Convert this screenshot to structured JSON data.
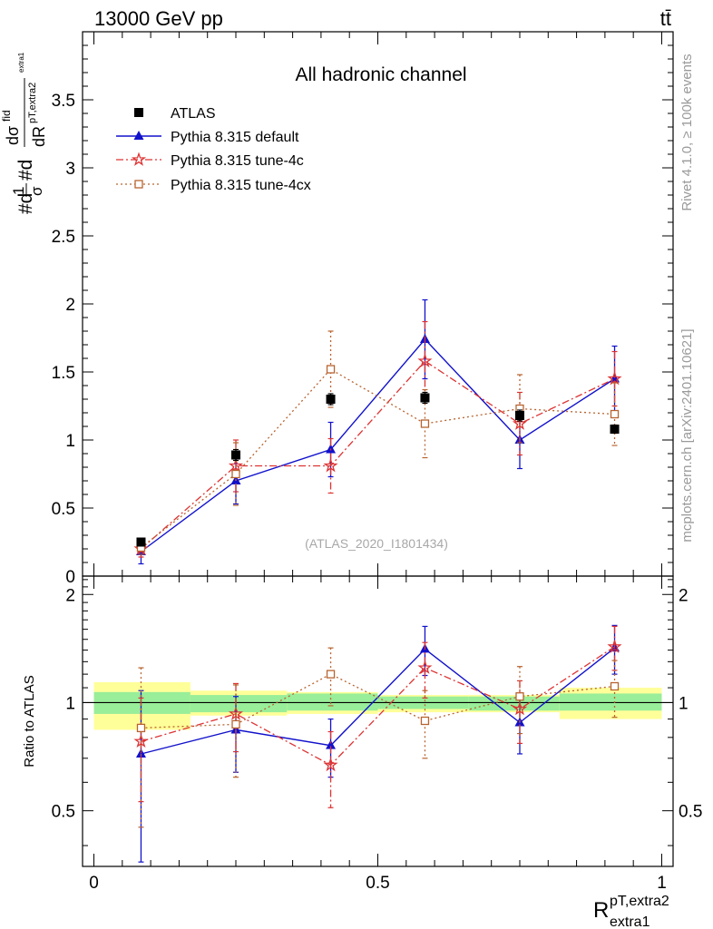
{
  "header": {
    "left": "13000 GeV pp",
    "right": "tt̄"
  },
  "side_labels": {
    "rivet": "Rivet 4.1.0, ≥ 100k events",
    "mcplots": "mcplots.cern.ch [arXiv:2401.10621]"
  },
  "chart_data": [
    {
      "type": "scatter",
      "panel": "main",
      "title": "All hadronic channel",
      "watermark": "(ATLAS_2020_I1801434)",
      "ylabel": "#d 1/σ #d dσ^fid / dR^{pT,extra2}_{extra1}",
      "ylabel_parts": {
        "prefix": "#d",
        "one": "1",
        "sigma": "σ",
        "mid": "#d",
        "num_d": "dσ",
        "num_sup": "fid",
        "den": "dR",
        "den_sub": "pT,extra2",
        "den_subsub": "extra1"
      },
      "xlim": [
        -0.02,
        1.02
      ],
      "ylim": [
        0,
        4.0
      ],
      "yticks": [
        0,
        0.5,
        1,
        1.5,
        2,
        2.5,
        3,
        3.5
      ],
      "ytick_labels": [
        "0",
        "0.5",
        "1",
        "1.5",
        "2",
        "2.5",
        "3",
        "3.5"
      ],
      "legend_location": "top-left",
      "series": [
        {
          "name": "ATLAS",
          "color": "#000000",
          "marker": "square",
          "x": [
            0.083,
            0.25,
            0.417,
            0.583,
            0.75,
            0.917
          ],
          "y": [
            0.25,
            0.89,
            1.3,
            1.31,
            1.18,
            1.08
          ],
          "yerr": [
            0.02,
            0.04,
            0.04,
            0.04,
            0.04,
            0.03
          ]
        },
        {
          "name": "Pythia 8.315 default",
          "color": "#1111cc",
          "marker": "triangle",
          "x": [
            0.083,
            0.25,
            0.417,
            0.583,
            0.75,
            0.917
          ],
          "y": [
            0.18,
            0.7,
            0.93,
            1.74,
            1.0,
            1.45
          ],
          "yerr": [
            0.09,
            0.17,
            0.2,
            0.29,
            0.21,
            0.24
          ]
        },
        {
          "name": "Pythia 8.315 tune-4c",
          "color": "#dd3333",
          "marker": "star",
          "x": [
            0.083,
            0.25,
            0.417,
            0.583,
            0.75,
            0.917
          ],
          "y": [
            0.2,
            0.81,
            0.81,
            1.58,
            1.12,
            1.45
          ],
          "yerr": [
            0.06,
            0.19,
            0.2,
            0.29,
            0.23,
            0.2
          ]
        },
        {
          "name": "Pythia 8.315 tune-4cx",
          "color": "#b8632f",
          "marker": "open-square",
          "x": [
            0.083,
            0.25,
            0.417,
            0.583,
            0.75,
            0.917
          ],
          "y": [
            0.21,
            0.75,
            1.52,
            1.12,
            1.23,
            1.19
          ],
          "yerr": [
            0.05,
            0.23,
            0.28,
            0.25,
            0.25,
            0.23
          ]
        }
      ]
    },
    {
      "type": "scatter",
      "panel": "ratio",
      "ylabel": "Ratio to ATLAS",
      "xlabel": "R^{pT,extra2}_{extra1}",
      "xlabel_main": "R",
      "xlabel_sup": "pT,extra2",
      "xlabel_sub": "extra1",
      "xlim": [
        -0.02,
        1.02
      ],
      "ylim": [
        0.35,
        2.25
      ],
      "xticks": [
        0,
        0.5,
        1
      ],
      "xtick_labels": [
        "0",
        "0.5",
        "1"
      ],
      "yticks": [
        0.5,
        1,
        2
      ],
      "ytick_labels": [
        "0.5",
        "1",
        "2"
      ],
      "reference_line": 1,
      "bins": [
        [
          0.0,
          0.17
        ],
        [
          0.17,
          0.34
        ],
        [
          0.34,
          0.5
        ],
        [
          0.5,
          0.66
        ],
        [
          0.66,
          0.82
        ],
        [
          0.82,
          1.0
        ]
      ],
      "band_inner": [
        [
          0.93,
          1.07
        ],
        [
          0.94,
          1.05
        ],
        [
          0.95,
          1.06
        ],
        [
          0.96,
          1.04
        ],
        [
          0.95,
          1.04
        ],
        [
          0.95,
          1.06
        ]
      ],
      "band_outer": [
        [
          0.84,
          1.14
        ],
        [
          0.92,
          1.08
        ],
        [
          0.93,
          1.07
        ],
        [
          0.94,
          1.05
        ],
        [
          0.94,
          1.05
        ],
        [
          0.9,
          1.1
        ]
      ],
      "series": [
        {
          "name": "Pythia 8.315 default",
          "color": "#1111cc",
          "marker": "triangle",
          "x": [
            0.083,
            0.25,
            0.417,
            0.583,
            0.75,
            0.917
          ],
          "y": [
            0.72,
            0.84,
            0.76,
            1.41,
            0.88,
            1.42
          ],
          "yerr": [
            0.36,
            0.2,
            0.14,
            0.22,
            0.16,
            0.22
          ]
        },
        {
          "name": "Pythia 8.315 tune-4c",
          "color": "#dd3333",
          "marker": "star",
          "x": [
            0.083,
            0.25,
            0.417,
            0.583,
            0.75,
            0.917
          ],
          "y": [
            0.78,
            0.93,
            0.67,
            1.25,
            0.96,
            1.43
          ],
          "yerr": [
            0.25,
            0.2,
            0.16,
            0.22,
            0.19,
            0.2
          ]
        },
        {
          "name": "Pythia 8.315 tune-4cx",
          "color": "#b8632f",
          "marker": "open-square",
          "x": [
            0.083,
            0.25,
            0.417,
            0.583,
            0.75,
            0.917
          ],
          "y": [
            0.85,
            0.87,
            1.2,
            0.89,
            1.04,
            1.11
          ],
          "yerr": [
            0.4,
            0.25,
            0.22,
            0.19,
            0.22,
            0.2
          ]
        }
      ]
    }
  ]
}
